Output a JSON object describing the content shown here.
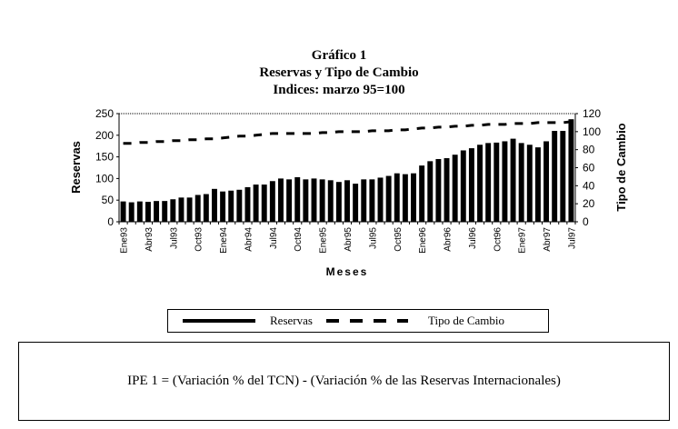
{
  "chart_data": {
    "type": "bar+line",
    "title": "Gráfico 1",
    "subtitle": "Reservas y Tipo de Cambio",
    "subtitle2": "Indices: marzo 95=100",
    "xlabel": "Meses",
    "ylabel": "Reservas",
    "y2label": "Tipo de Cambio",
    "ylim": [
      0,
      250
    ],
    "y2lim": [
      0,
      120
    ],
    "yticks": [
      "0",
      "50",
      "100",
      "150",
      "200",
      "250"
    ],
    "y2ticks": [
      "0",
      "20",
      "40",
      "60",
      "80",
      "100",
      "120"
    ],
    "xticklabels": [
      "Ene93",
      "Abr93",
      "Jul93",
      "Oct93",
      "Ene94",
      "Abr94",
      "Jul94",
      "Oct94",
      "Ene95",
      "Abr95",
      "Jul95",
      "Oct95",
      "Ene96",
      "Abr96",
      "Jul96",
      "Oct96",
      "Ene97",
      "Abr97",
      "Jul97"
    ],
    "series": [
      {
        "name": "Reservas",
        "type": "bar",
        "axis": "left",
        "values": [
          47,
          45,
          47,
          46,
          48,
          48,
          52,
          56,
          56,
          62,
          64,
          76,
          70,
          72,
          74,
          80,
          86,
          86,
          94,
          100,
          98,
          103,
          98,
          100,
          98,
          96,
          92,
          96,
          88,
          98,
          98,
          102,
          106,
          112,
          110,
          112,
          130,
          140,
          145,
          147,
          155,
          165,
          170,
          178,
          182,
          183,
          186,
          192,
          182,
          178,
          172,
          186,
          210,
          210,
          237
        ]
      },
      {
        "name": "Tipo de Cambio",
        "type": "line-dashed",
        "axis": "right",
        "values": [
          87,
          87,
          88,
          88,
          89,
          89,
          90,
          90,
          91,
          91,
          92,
          92,
          93,
          94,
          95,
          95,
          96,
          97,
          98,
          98,
          98,
          98,
          98,
          98,
          99,
          99,
          100,
          100,
          100,
          100,
          101,
          101,
          101,
          102,
          102,
          103,
          104,
          104,
          105,
          105,
          106,
          106,
          107,
          107,
          108,
          108,
          108,
          109,
          109,
          109,
          110,
          110,
          110,
          110,
          111
        ]
      }
    ],
    "legend": "bottom"
  },
  "formula": "IPE 1 = (Variación % del TCN) - (Variación % de las Reservas  Internacionales)"
}
